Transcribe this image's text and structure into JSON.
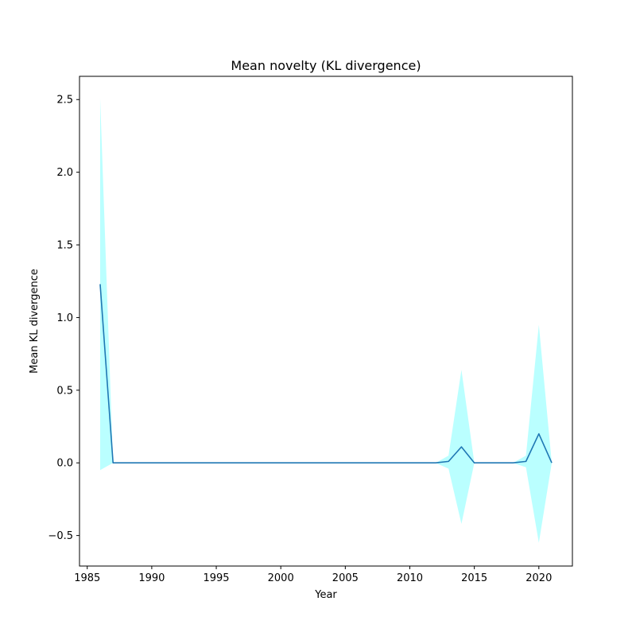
{
  "chart_data": {
    "type": "line",
    "title": "Mean novelty (KL divergence)",
    "xlabel": "Year",
    "ylabel": "Mean KL divergence",
    "xlim": [
      1984.4,
      2022.6
    ],
    "ylim": [
      -0.71,
      2.66
    ],
    "xticks": [
      1985,
      1990,
      1995,
      2000,
      2005,
      2010,
      2015,
      2020
    ],
    "yticks": [
      -0.5,
      0.0,
      0.5,
      1.0,
      1.5,
      2.0,
      2.5
    ],
    "ytick_labels": [
      "−0.5",
      "0.0",
      "0.5",
      "1.0",
      "1.5",
      "2.0",
      "2.5"
    ],
    "grid": false,
    "colors": {
      "line": "#1f77b4",
      "band": "#00ffff",
      "band_opacity": 0.27
    },
    "series": [
      {
        "x": [
          1986,
          1987,
          1988,
          1989,
          1990,
          1991,
          1992,
          1993,
          1994,
          1995,
          1996,
          1997,
          1998,
          1999,
          2000,
          2001,
          2002,
          2003,
          2004,
          2005,
          2006,
          2007,
          2008,
          2009,
          2010,
          2011,
          2012,
          2013,
          2014,
          2015,
          2016,
          2017,
          2018,
          2019,
          2020,
          2021
        ],
        "y": [
          1.23,
          0.0,
          0.0,
          0.0,
          0.0,
          0.0,
          0.0,
          0.0,
          0.0,
          0.0,
          0.0,
          0.0,
          0.0,
          0.0,
          0.0,
          0.0,
          0.0,
          0.0,
          0.0,
          0.0,
          0.0,
          0.0,
          0.0,
          0.0,
          0.0,
          0.0,
          0.0,
          0.01,
          0.11,
          0.0,
          0.0,
          0.0,
          0.0,
          0.01,
          0.2,
          0.0
        ],
        "upper": [
          2.51,
          0.0,
          0.0,
          0.0,
          0.0,
          0.0,
          0.0,
          0.0,
          0.0,
          0.0,
          0.0,
          0.0,
          0.0,
          0.0,
          0.0,
          0.0,
          0.0,
          0.0,
          0.0,
          0.0,
          0.0,
          0.0,
          0.0,
          0.0,
          0.0,
          0.0,
          0.0,
          0.05,
          0.64,
          0.0,
          0.0,
          0.0,
          0.0,
          0.05,
          0.95,
          0.0
        ],
        "lower": [
          -0.05,
          0.0,
          0.0,
          0.0,
          0.0,
          0.0,
          0.0,
          0.0,
          0.0,
          0.0,
          0.0,
          0.0,
          0.0,
          0.0,
          0.0,
          0.0,
          0.0,
          0.0,
          0.0,
          0.0,
          0.0,
          0.0,
          0.0,
          0.0,
          0.0,
          0.0,
          0.0,
          -0.04,
          -0.42,
          0.0,
          0.0,
          0.0,
          0.0,
          -0.03,
          -0.55,
          0.0
        ]
      }
    ]
  }
}
